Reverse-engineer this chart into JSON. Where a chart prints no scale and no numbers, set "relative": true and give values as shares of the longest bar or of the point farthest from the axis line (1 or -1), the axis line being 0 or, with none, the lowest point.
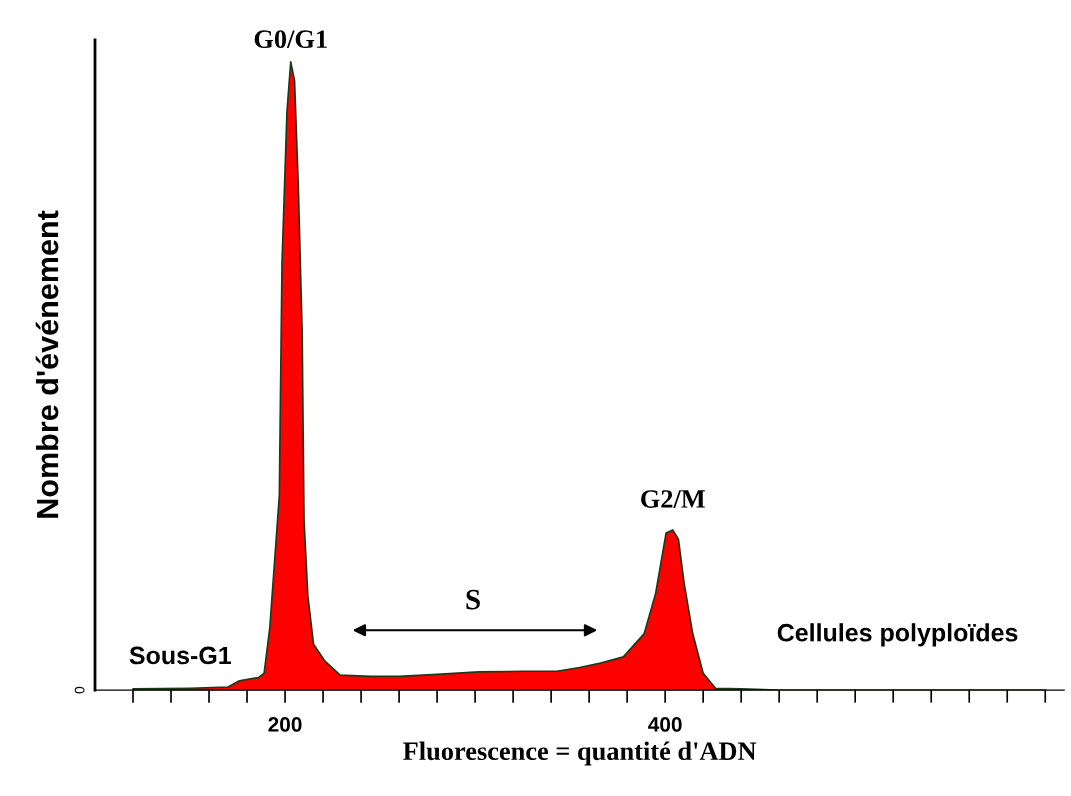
{
  "chart_data": {
    "type": "area",
    "relative": true,
    "xlabel": "Fluorescence = quantité d'ADN",
    "ylabel": "Nombre d'événement",
    "xlim": [
      100,
      610
    ],
    "xticks": [
      {
        "value": 120,
        "label": null
      },
      {
        "value": 140,
        "label": null
      },
      {
        "value": 160,
        "label": null
      },
      {
        "value": 180,
        "label": null
      },
      200,
      {
        "value": 220,
        "label": null
      },
      {
        "value": 240,
        "label": null
      },
      {
        "value": 260,
        "label": null
      },
      {
        "value": 280,
        "label": null
      },
      {
        "value": 300,
        "label": null
      },
      {
        "value": 320,
        "label": null
      },
      {
        "value": 340,
        "label": null
      },
      {
        "value": 360,
        "label": null
      },
      {
        "value": 380,
        "label": null
      },
      400,
      {
        "value": 420,
        "label": null
      },
      {
        "value": 440,
        "label": null
      },
      {
        "value": 460,
        "label": null
      },
      {
        "value": 480,
        "label": null
      },
      {
        "value": 500,
        "label": null
      },
      {
        "value": 520,
        "label": null
      },
      {
        "value": 540,
        "label": null
      },
      {
        "value": 560,
        "label": null
      },
      {
        "value": 580,
        "label": null
      },
      {
        "value": 600,
        "label": null
      }
    ],
    "series": [
      {
        "color": "#ff0000",
        "x": [
          120,
          150,
          170,
          176,
          186,
          189,
          192,
          197,
          198.4,
          201,
          203,
          205,
          207,
          209,
          210,
          212,
          215,
          221,
          229,
          245,
          260,
          280,
          302,
          325,
          343,
          355,
          366,
          378,
          389,
          395,
          400.5,
          404,
          407,
          410,
          414.5,
          420,
          426.5,
          440,
          460,
          600
        ],
        "values": [
          0.002,
          0.003,
          0.005,
          0.015,
          0.02,
          0.027,
          0.1,
          0.31,
          0.68,
          0.92,
          1.0,
          0.97,
          0.8,
          0.57,
          0.27,
          0.15,
          0.073,
          0.046,
          0.024,
          0.022,
          0.022,
          0.025,
          0.029,
          0.03,
          0.03,
          0.036,
          0.043,
          0.053,
          0.09,
          0.154,
          0.25,
          0.255,
          0.24,
          0.17,
          0.09,
          0.027,
          0.003,
          0.002,
          0,
          0
        ]
      }
    ],
    "annotations": [
      {
        "text": "G0/G1",
        "x": 203,
        "y": 1.0
      },
      {
        "text": "G2/M",
        "x": 404,
        "y": 0.255
      },
      "S",
      "Sous-G1",
      "Cellules polyploïdes",
      "0"
    ]
  }
}
